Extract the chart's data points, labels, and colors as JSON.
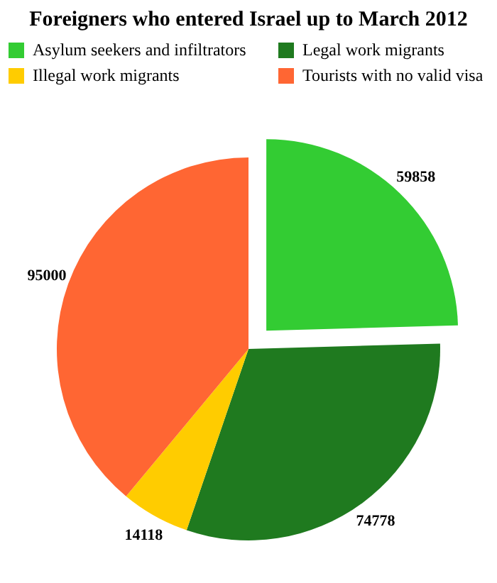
{
  "chart_data": {
    "type": "pie",
    "title": "Foreigners who entered Israel up to March 2012",
    "categories": [
      "Asylum seekers and infiltrators",
      "Legal work migrants",
      "Illegal work migrants",
      "Tourists with no valid visa"
    ],
    "values": [
      59858,
      74778,
      14118,
      95000
    ],
    "colors": [
      "#33cc33",
      "#1f7a1f",
      "#ffcc00",
      "#ff6633"
    ],
    "data_labels": true,
    "legend": "top"
  }
}
